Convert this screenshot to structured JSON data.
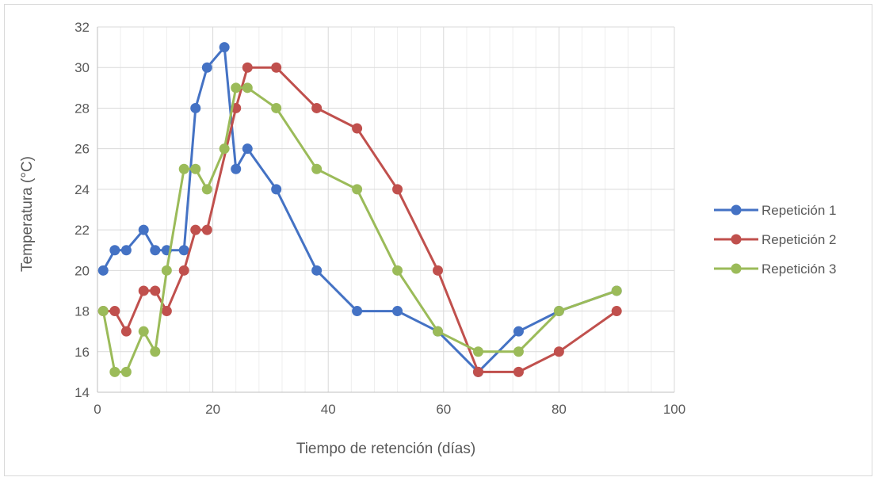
{
  "chart_data": {
    "type": "line",
    "xlabel": "Tiempo de retención (días)",
    "ylabel": "Temperatura (°C)",
    "xlim": [
      0,
      100
    ],
    "ylim": [
      14,
      32
    ],
    "x_ticks": [
      "0",
      "20",
      "40",
      "60",
      "80",
      "100"
    ],
    "y_ticks": [
      "14",
      "16",
      "18",
      "20",
      "22",
      "24",
      "26",
      "28",
      "30",
      "32"
    ],
    "grid": true,
    "legend_position": "right",
    "series": [
      {
        "name": "Repetición 1",
        "color": "#4472c4",
        "x": [
          1,
          3,
          5,
          8,
          10,
          12,
          15,
          17,
          19,
          22,
          24,
          26,
          31,
          38,
          45,
          52,
          59,
          66,
          73,
          80,
          90
        ],
        "y": [
          20,
          21,
          21,
          22,
          21,
          21,
          21,
          28,
          30,
          31,
          25,
          26,
          24,
          20,
          18,
          18,
          17,
          15,
          17,
          18,
          19
        ]
      },
      {
        "name": "Repetición 2",
        "color": "#c0504d",
        "x": [
          1,
          3,
          5,
          8,
          10,
          12,
          15,
          17,
          19,
          24,
          26,
          31,
          38,
          45,
          52,
          59,
          66,
          73,
          80,
          90
        ],
        "y": [
          18,
          18,
          17,
          19,
          19,
          18,
          20,
          22,
          22,
          28,
          30,
          30,
          28,
          27,
          24,
          20,
          15,
          15,
          16,
          18
        ]
      },
      {
        "name": "Repetición 3",
        "color": "#9bbb59",
        "x": [
          1,
          3,
          5,
          8,
          10,
          12,
          15,
          17,
          19,
          22,
          24,
          26,
          31,
          38,
          45,
          52,
          59,
          66,
          73,
          80,
          90
        ],
        "y": [
          18,
          15,
          15,
          17,
          16,
          20,
          25,
          25,
          24,
          26,
          29,
          29,
          28,
          25,
          24,
          20,
          17,
          16,
          16,
          18,
          19
        ]
      }
    ]
  }
}
